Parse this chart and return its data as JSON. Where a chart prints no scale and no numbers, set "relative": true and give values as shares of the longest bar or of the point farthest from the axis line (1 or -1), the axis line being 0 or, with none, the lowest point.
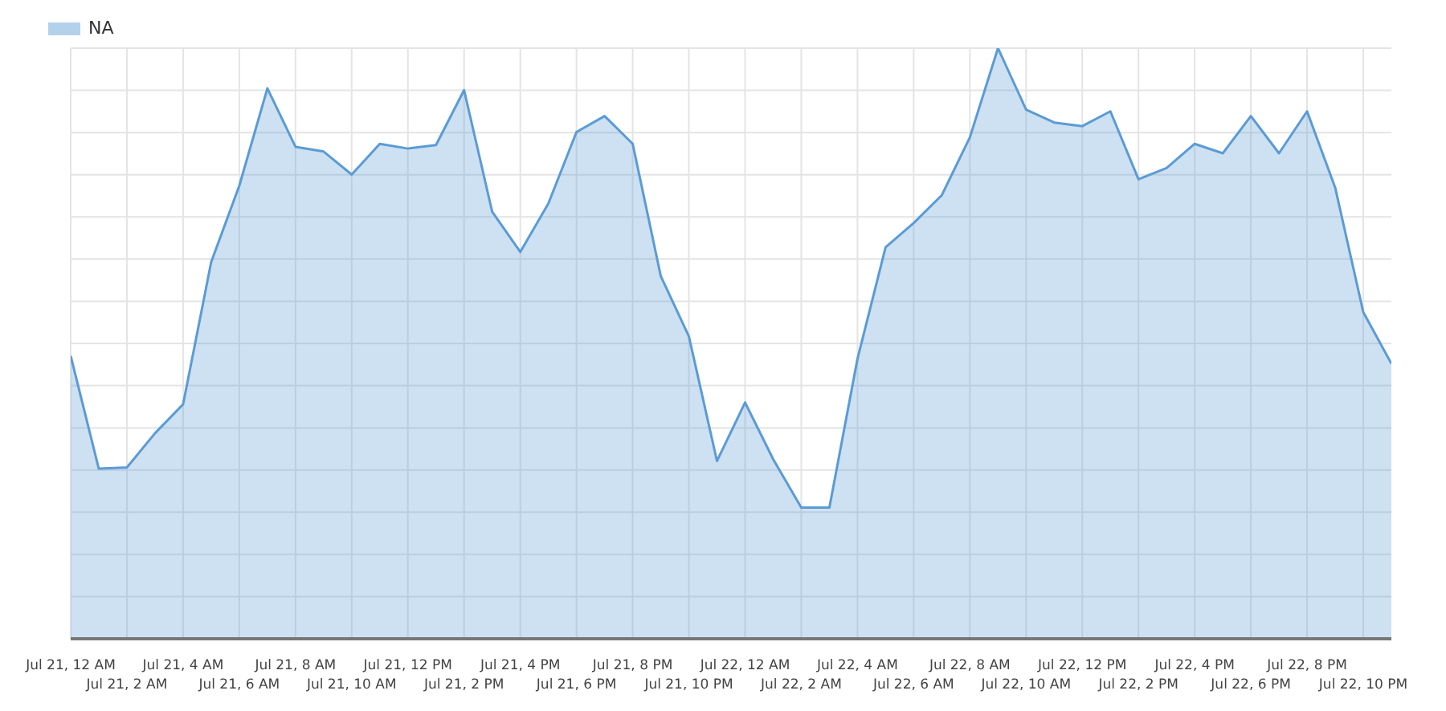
{
  "chart_data": {
    "type": "area",
    "relative": true,
    "categories": [
      "Jul 21, 12 AM",
      null,
      "Jul 21, 2 AM",
      null,
      "Jul 21, 4 AM",
      null,
      "Jul 21, 6 AM",
      null,
      "Jul 21, 8 AM",
      null,
      "Jul 21, 10 AM",
      null,
      "Jul 21, 12 PM",
      null,
      "Jul 21, 2 PM",
      null,
      "Jul 21, 4 PM",
      null,
      "Jul 21, 6 PM",
      null,
      "Jul 21, 8 PM",
      null,
      "Jul 21, 10 PM",
      null,
      "Jul 22, 12 AM",
      null,
      "Jul 22, 2 AM",
      null,
      "Jul 22, 4 AM",
      null,
      "Jul 22, 6 AM",
      null,
      "Jul 22, 8 AM",
      null,
      "Jul 22, 10 AM",
      null,
      "Jul 22, 12 PM",
      null,
      "Jul 22, 2 PM",
      null,
      "Jul 22, 4 PM",
      null,
      "Jul 22, 6 PM",
      null,
      "Jul 22, 8 PM",
      null,
      "Jul 22, 10 PM",
      null
    ],
    "series": [
      {
        "name": "NA",
        "color": "#5b9bd5",
        "values": [
          0.479,
          0.288,
          0.29,
          0.348,
          0.397,
          0.638,
          0.767,
          0.932,
          0.833,
          0.825,
          0.786,
          0.838,
          0.83,
          0.836,
          0.929,
          0.723,
          0.655,
          0.737,
          0.858,
          0.885,
          0.838,
          0.614,
          0.512,
          0.301,
          0.4,
          0.304,
          0.222,
          0.222,
          0.474,
          0.663,
          0.704,
          0.751,
          0.849,
          1,
          0.896,
          0.874,
          0.868,
          0.893,
          0.778,
          0.797,
          0.838,
          0.822,
          0.885,
          0.822,
          0.893,
          0.764,
          0.553,
          0.466
        ]
      }
    ],
    "grid": true,
    "legend": "top left",
    "marker": "none",
    "line_style": "solid"
  }
}
